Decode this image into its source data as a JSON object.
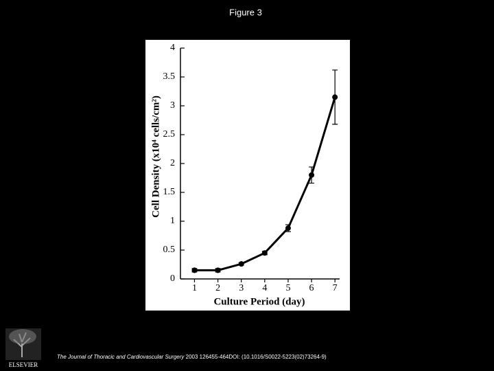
{
  "slide_title": "Figure 3",
  "chart_data": {
    "type": "line",
    "x": [
      1,
      2,
      3,
      4,
      5,
      6,
      7
    ],
    "values": [
      0.15,
      0.15,
      0.26,
      0.45,
      0.88,
      1.8,
      3.15
    ],
    "errors": [
      0.03,
      0.03,
      0.02,
      0.03,
      0.06,
      0.14,
      0.47
    ],
    "color": "#000000",
    "xlabel": "Culture Period (day)",
    "ylabel": "Cell Density (x10⁴ cells/cm²)",
    "xlim": [
      0.4,
      7.2
    ],
    "xticks": [
      1,
      2,
      3,
      4,
      5,
      6,
      7
    ],
    "ylim": [
      0,
      4
    ],
    "yticks": [
      0,
      0.5,
      1,
      1.5,
      2,
      2.5,
      3,
      3.5,
      4
    ]
  },
  "footer": {
    "journal": "The Journal of Thoracic and Cardiovascular Surgery",
    "citation": "2003 126455-464DOI: (10.1016/S0022-5223(02)73264-9)"
  },
  "logo": {
    "text": "ELSEVIER"
  }
}
